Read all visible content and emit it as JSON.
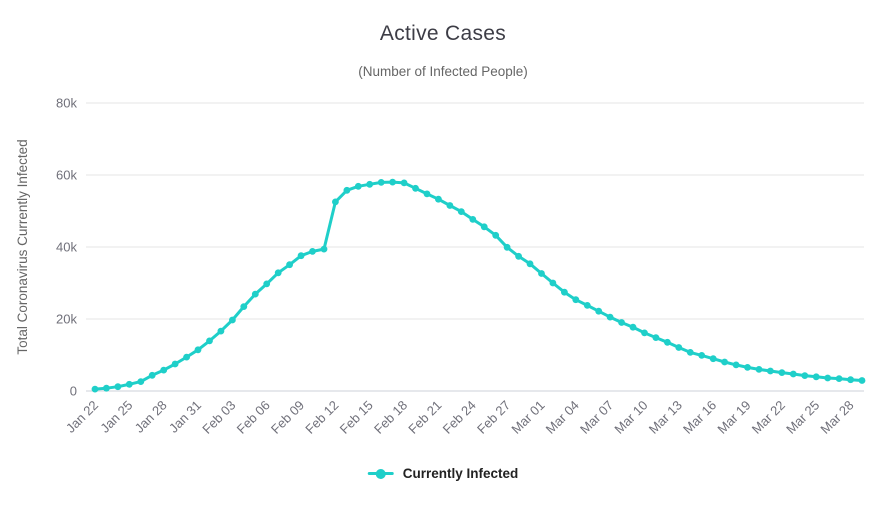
{
  "title": "Active Cases",
  "subtitle": "(Number of Infected People)",
  "legend": {
    "label": "Currently Infected"
  },
  "colors": {
    "series": "#1fcfc9",
    "grid": "#e6e6e6",
    "axis_line": "#ccd1da",
    "title_text": "#3d3d46",
    "subtitle_text": "#666666",
    "tick_text": "#70707a",
    "legend_text": "#222222",
    "background": "#ffffff"
  },
  "chart_data": {
    "type": "line",
    "title": "Active Cases",
    "subtitle": "(Number of Infected People)",
    "xlabel": "",
    "ylabel": "Total Coronavirus Currently Infected",
    "ylim": [
      0,
      80000
    ],
    "yticks": [
      0,
      20000,
      40000,
      60000,
      80000
    ],
    "ytick_labels": [
      "0",
      "20k",
      "40k",
      "60k",
      "80k"
    ],
    "grid": true,
    "legend_position": "bottom",
    "series_name": "Currently Infected",
    "x_tick_every": 3,
    "x_label_rotation": -45,
    "categories": [
      "Jan 22",
      "Jan 23",
      "Jan 24",
      "Jan 25",
      "Jan 26",
      "Jan 27",
      "Jan 28",
      "Jan 29",
      "Jan 30",
      "Jan 31",
      "Feb 01",
      "Feb 02",
      "Feb 03",
      "Feb 04",
      "Feb 05",
      "Feb 06",
      "Feb 07",
      "Feb 08",
      "Feb 09",
      "Feb 10",
      "Feb 11",
      "Feb 12",
      "Feb 13",
      "Feb 14",
      "Feb 15",
      "Feb 16",
      "Feb 17",
      "Feb 18",
      "Feb 19",
      "Feb 20",
      "Feb 21",
      "Feb 22",
      "Feb 23",
      "Feb 24",
      "Feb 25",
      "Feb 26",
      "Feb 27",
      "Feb 28",
      "Feb 29",
      "Mar 01",
      "Mar 02",
      "Mar 03",
      "Mar 04",
      "Mar 05",
      "Mar 06",
      "Mar 07",
      "Mar 08",
      "Mar 09",
      "Mar 10",
      "Mar 11",
      "Mar 12",
      "Mar 13",
      "Mar 14",
      "Mar 15",
      "Mar 16",
      "Mar 17",
      "Mar 18",
      "Mar 19",
      "Mar 20",
      "Mar 21",
      "Mar 22",
      "Mar 23",
      "Mar 24",
      "Mar 25",
      "Mar 26",
      "Mar 27",
      "Mar 28",
      "Mar 29"
    ],
    "values": [
      531,
      771,
      1208,
      1870,
      2613,
      4373,
      5794,
      7489,
      9404,
      11444,
      13918,
      16630,
      19736,
      23437,
      26907,
      29760,
      32824,
      35072,
      37573,
      38782,
      39419,
      52526,
      55748,
      56873,
      57416,
      57934,
      58016,
      57805,
      56303,
      54747,
      53284,
      51526,
      49824,
      47672,
      45604,
      43258,
      39919,
      37414,
      35329,
      32652,
      30004,
      27433,
      25352,
      23784,
      22177,
      20533,
      19016,
      17721,
      16136,
      14831,
      13526,
      12094,
      10734,
      9898,
      8976,
      8056,
      7263,
      6569,
      6013,
      5549,
      5120,
      4735,
      4287,
      3947,
      3622,
      3437,
      3128,
      2930
    ]
  }
}
